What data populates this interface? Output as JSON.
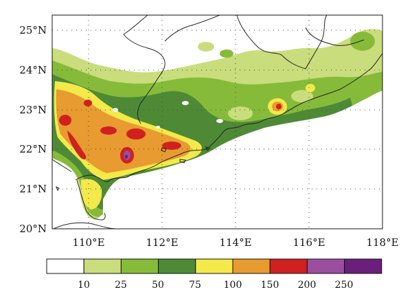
{
  "map": {
    "lon_labels": [
      "110°E",
      "112°E",
      "114°E",
      "116°E",
      "118°E"
    ],
    "lat_labels": [
      "20°N",
      "21°N",
      "22°N",
      "23°N",
      "24°N",
      "25°N"
    ],
    "lon_values": [
      110,
      112,
      114,
      116,
      118
    ],
    "lat_values": [
      20,
      21,
      22,
      23,
      24,
      25
    ],
    "lon_range": [
      109,
      118
    ],
    "lat_range": [
      20,
      25.3
    ]
  },
  "colorbar": {
    "colors": [
      "#ffffff",
      "#c9dd7c",
      "#86bb3a",
      "#4e8a35",
      "#f3e94a",
      "#e79b30",
      "#d0201f",
      "#9b4e9e",
      "#6a1f7a"
    ],
    "tick_labels": [
      "10",
      "25",
      "50",
      "75",
      "100",
      "150",
      "200",
      "250"
    ]
  },
  "palette": {
    "light_green": "#c9dd7c",
    "green": "#86bb3a",
    "dark_green": "#4e8a35",
    "yellow": "#f3e94a",
    "orange": "#e79b30",
    "red": "#d0201f",
    "purple": "#9b4e9e",
    "dark_purple": "#6a1f7a"
  }
}
